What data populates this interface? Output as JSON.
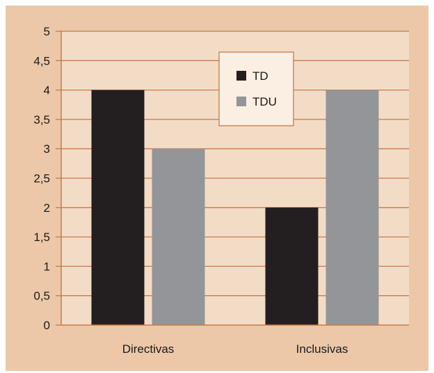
{
  "colors": {
    "page_background": "#ecc8a8",
    "plot_background": "#f3dcc6",
    "axis": "#c77a4a",
    "grid": "#c77a4a"
  },
  "chart_data": {
    "type": "bar",
    "categories": [
      "Directivas",
      "Inclusivas"
    ],
    "series": [
      {
        "name": "TD",
        "values": [
          4,
          2
        ],
        "color": "#231f20"
      },
      {
        "name": "TDU",
        "values": [
          3,
          4
        ],
        "color": "#939598"
      }
    ],
    "ylim": [
      0,
      5
    ],
    "yticks": [
      "0",
      "0,5",
      "1",
      "1,5",
      "2",
      "2,5",
      "3",
      "3,5",
      "4",
      "4,5",
      "5"
    ],
    "title": "",
    "xlabel": "",
    "ylabel": "",
    "grid": true,
    "legend_position": "top-center"
  }
}
